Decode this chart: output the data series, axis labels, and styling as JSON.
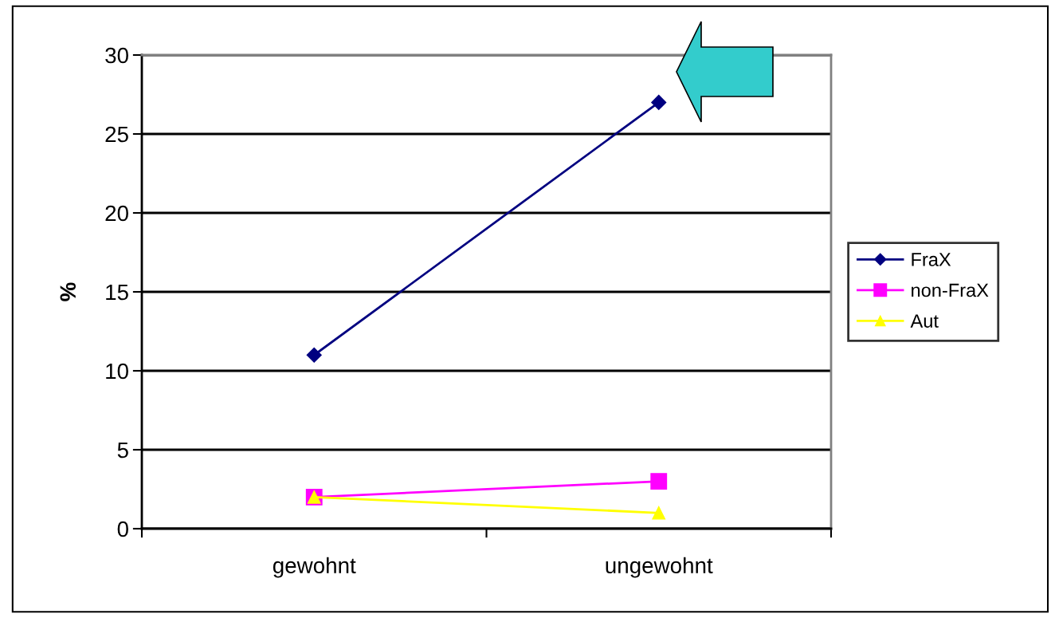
{
  "chart_data": {
    "type": "line",
    "ylabel": "%",
    "categories": [
      "gewohnt",
      "ungewohnt"
    ],
    "series": [
      {
        "name": "FraX",
        "color": "#000080",
        "values": [
          11,
          27
        ],
        "marker": "diamond"
      },
      {
        "name": "non-FraX",
        "color": "#ff00ff",
        "values": [
          2,
          3
        ],
        "marker": "square"
      },
      {
        "name": "Aut",
        "color": "#ffff00",
        "values": [
          2,
          1
        ],
        "marker": "triangle"
      }
    ],
    "ylim": [
      0,
      30
    ],
    "yticks": [
      0,
      5,
      10,
      15,
      20,
      25,
      30
    ],
    "grid": "y",
    "legend": "right"
  }
}
